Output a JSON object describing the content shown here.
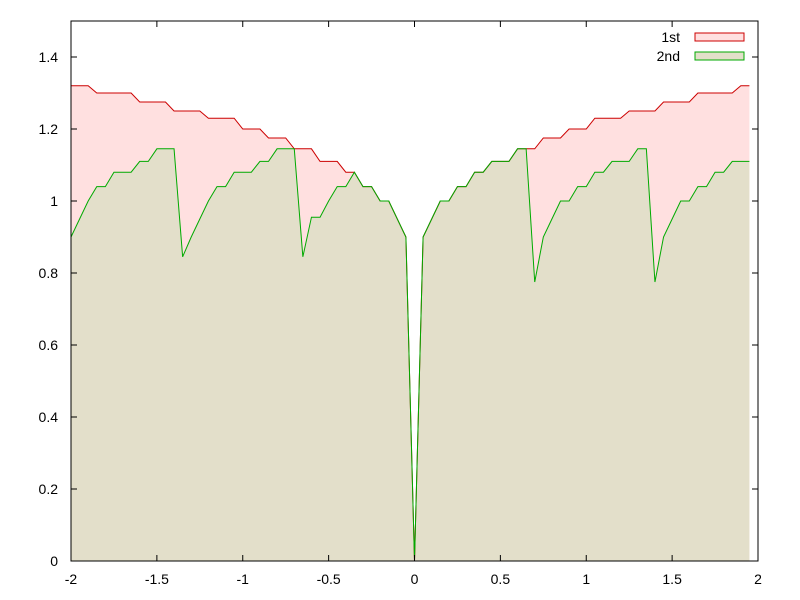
{
  "chart_data": {
    "type": "area",
    "xlim": [
      -2,
      2
    ],
    "ylim": [
      0,
      1.5
    ],
    "xticks": [
      "-2",
      "-1.5",
      "-1",
      "-0.5",
      "0",
      "0.5",
      "1",
      "1.5",
      "2"
    ],
    "yticks": [
      "0",
      "0.2",
      "0.4",
      "0.6",
      "0.8",
      "1",
      "1.2",
      "1.4"
    ],
    "grid": false,
    "legend_position": "top-right",
    "series": [
      {
        "name": "1st",
        "line_color": "#cc0000",
        "fill_color": "#ffe0e0",
        "points": [
          [
            -2.0,
            1.32
          ],
          [
            -1.9,
            1.32
          ],
          [
            -1.85,
            1.3
          ],
          [
            -1.65,
            1.3
          ],
          [
            -1.6,
            1.275
          ],
          [
            -1.45,
            1.275
          ],
          [
            -1.4,
            1.25
          ],
          [
            -1.25,
            1.25
          ],
          [
            -1.2,
            1.23
          ],
          [
            -1.05,
            1.23
          ],
          [
            -1.0,
            1.2
          ],
          [
            -0.9,
            1.2
          ],
          [
            -0.85,
            1.175
          ],
          [
            -0.75,
            1.175
          ],
          [
            -0.7,
            1.145
          ],
          [
            -0.6,
            1.145
          ],
          [
            -0.55,
            1.11
          ],
          [
            -0.45,
            1.11
          ],
          [
            -0.4,
            1.08
          ],
          [
            -0.35,
            1.08
          ],
          [
            -0.3,
            1.04
          ],
          [
            -0.25,
            1.04
          ],
          [
            -0.2,
            1.0
          ],
          [
            -0.15,
            1.0
          ],
          [
            -0.05,
            0.9
          ],
          [
            0.0,
            0.0
          ],
          [
            0.05,
            0.9
          ],
          [
            0.15,
            1.0
          ],
          [
            0.2,
            1.0
          ],
          [
            0.25,
            1.04
          ],
          [
            0.3,
            1.04
          ],
          [
            0.35,
            1.08
          ],
          [
            0.4,
            1.08
          ],
          [
            0.45,
            1.11
          ],
          [
            0.55,
            1.11
          ],
          [
            0.6,
            1.145
          ],
          [
            0.7,
            1.145
          ],
          [
            0.75,
            1.175
          ],
          [
            0.85,
            1.175
          ],
          [
            0.9,
            1.2
          ],
          [
            1.0,
            1.2
          ],
          [
            1.05,
            1.23
          ],
          [
            1.2,
            1.23
          ],
          [
            1.25,
            1.25
          ],
          [
            1.4,
            1.25
          ],
          [
            1.45,
            1.275
          ],
          [
            1.6,
            1.275
          ],
          [
            1.65,
            1.3
          ],
          [
            1.85,
            1.3
          ],
          [
            1.9,
            1.32
          ],
          [
            1.95,
            1.32
          ]
        ]
      },
      {
        "name": "2nd",
        "line_color": "#00aa00",
        "fill_color": "#e3dfca",
        "points": [
          [
            -2.0,
            0.9
          ],
          [
            -1.95,
            0.95
          ],
          [
            -1.9,
            1.0
          ],
          [
            -1.85,
            1.04
          ],
          [
            -1.8,
            1.04
          ],
          [
            -1.75,
            1.08
          ],
          [
            -1.65,
            1.08
          ],
          [
            -1.6,
            1.11
          ],
          [
            -1.55,
            1.11
          ],
          [
            -1.5,
            1.145
          ],
          [
            -1.4,
            1.145
          ],
          [
            -1.35,
            0.845
          ],
          [
            -1.3,
            0.9
          ],
          [
            -1.25,
            0.95
          ],
          [
            -1.2,
            1.0
          ],
          [
            -1.15,
            1.04
          ],
          [
            -1.1,
            1.04
          ],
          [
            -1.05,
            1.08
          ],
          [
            -0.95,
            1.08
          ],
          [
            -0.9,
            1.11
          ],
          [
            -0.85,
            1.11
          ],
          [
            -0.8,
            1.145
          ],
          [
            -0.7,
            1.145
          ],
          [
            -0.65,
            0.845
          ],
          [
            -0.6,
            0.955
          ],
          [
            -0.55,
            0.955
          ],
          [
            -0.5,
            1.0
          ],
          [
            -0.45,
            1.04
          ],
          [
            -0.4,
            1.04
          ],
          [
            -0.35,
            1.08
          ],
          [
            -0.3,
            1.04
          ],
          [
            -0.25,
            1.04
          ],
          [
            -0.2,
            1.0
          ],
          [
            -0.15,
            1.0
          ],
          [
            -0.05,
            0.9
          ],
          [
            0.0,
            0.0
          ],
          [
            0.05,
            0.9
          ],
          [
            0.1,
            0.95
          ],
          [
            0.15,
            1.0
          ],
          [
            0.2,
            1.0
          ],
          [
            0.25,
            1.04
          ],
          [
            0.3,
            1.04
          ],
          [
            0.35,
            1.08
          ],
          [
            0.4,
            1.08
          ],
          [
            0.45,
            1.11
          ],
          [
            0.55,
            1.11
          ],
          [
            0.6,
            1.145
          ],
          [
            0.65,
            1.145
          ],
          [
            0.7,
            0.775
          ],
          [
            0.75,
            0.9
          ],
          [
            0.8,
            0.95
          ],
          [
            0.85,
            1.0
          ],
          [
            0.9,
            1.0
          ],
          [
            0.95,
            1.04
          ],
          [
            1.0,
            1.04
          ],
          [
            1.05,
            1.08
          ],
          [
            1.1,
            1.08
          ],
          [
            1.15,
            1.11
          ],
          [
            1.25,
            1.11
          ],
          [
            1.3,
            1.145
          ],
          [
            1.35,
            1.145
          ],
          [
            1.4,
            0.775
          ],
          [
            1.45,
            0.9
          ],
          [
            1.5,
            0.95
          ],
          [
            1.55,
            1.0
          ],
          [
            1.6,
            1.0
          ],
          [
            1.65,
            1.04
          ],
          [
            1.7,
            1.04
          ],
          [
            1.75,
            1.08
          ],
          [
            1.8,
            1.08
          ],
          [
            1.85,
            1.11
          ],
          [
            1.95,
            1.11
          ]
        ]
      }
    ]
  }
}
